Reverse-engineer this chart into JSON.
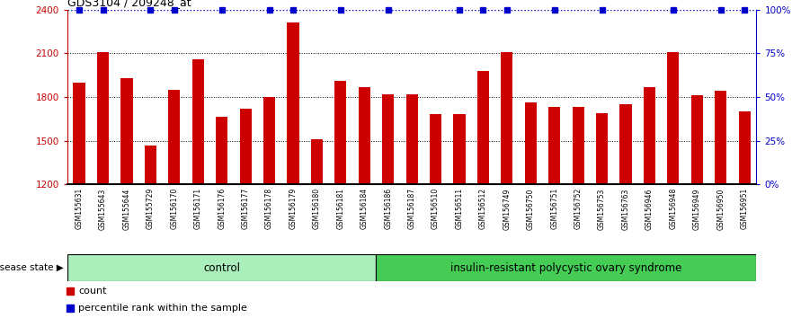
{
  "title": "GDS3104 / 209248_at",
  "samples": [
    "GSM155631",
    "GSM155643",
    "GSM155644",
    "GSM155729",
    "GSM156170",
    "GSM156171",
    "GSM156176",
    "GSM156177",
    "GSM156178",
    "GSM156179",
    "GSM156180",
    "GSM156181",
    "GSM156184",
    "GSM156186",
    "GSM156187",
    "GSM156510",
    "GSM156511",
    "GSM156512",
    "GSM156749",
    "GSM156750",
    "GSM156751",
    "GSM156752",
    "GSM156753",
    "GSM156763",
    "GSM156946",
    "GSM156948",
    "GSM156949",
    "GSM156950",
    "GSM156951"
  ],
  "counts": [
    1900,
    2110,
    1930,
    1470,
    1850,
    2060,
    1665,
    1720,
    1800,
    2310,
    1510,
    1910,
    1870,
    1820,
    1820,
    1680,
    1680,
    1980,
    2110,
    1760,
    1730,
    1730,
    1690,
    1750,
    1870,
    2105,
    1810,
    1840,
    1700
  ],
  "has_blue_dot": [
    true,
    true,
    false,
    true,
    true,
    false,
    true,
    false,
    true,
    true,
    false,
    true,
    false,
    true,
    false,
    false,
    true,
    true,
    true,
    false,
    true,
    false,
    true,
    false,
    false,
    true,
    false,
    true,
    true
  ],
  "control_count": 13,
  "groups": [
    "control",
    "insulin-resistant polycystic ovary syndrome"
  ],
  "control_color": "#AAEEBB",
  "irpcos_color": "#44CC55",
  "ymin": 1200,
  "ymax": 2400,
  "yticks_left": [
    1200,
    1500,
    1800,
    2100,
    2400
  ],
  "yticks_right": [
    0,
    25,
    50,
    75,
    100
  ],
  "bar_color": "#CC0000",
  "blue_color": "#0000CC",
  "tick_bg_color": "#C8C8C8",
  "legend_count_label": "count",
  "legend_percentile_label": "percentile rank within the sample"
}
